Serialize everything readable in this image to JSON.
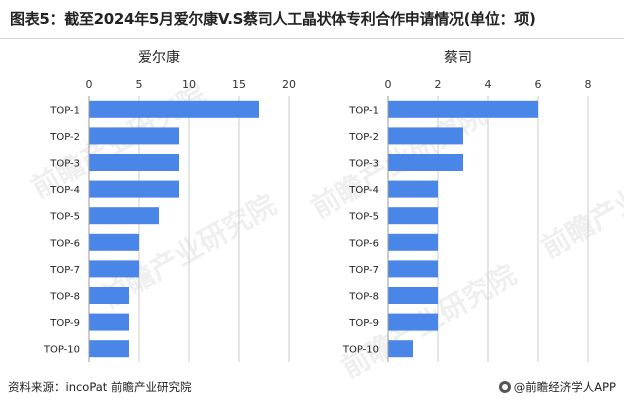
{
  "title": "图表5：截至2024年5月爱尔康V.S蔡司人工晶状体专利合作申请情况(单位：项)",
  "footer": {
    "source": "资料来源：incoPat 前瞻产业研究院",
    "brand": "@前瞻经济学人APP"
  },
  "watermark_text": "前瞻产业研究院",
  "colors": {
    "bar": "#4a86e8",
    "grid": "#cccccc"
  },
  "chart_data": [
    {
      "type": "bar",
      "orientation": "horizontal",
      "title": "爱尔康",
      "categories": [
        "TOP-1",
        "TOP-2",
        "TOP-3",
        "TOP-4",
        "TOP-5",
        "TOP-6",
        "TOP-7",
        "TOP-8",
        "TOP-9",
        "TOP-10"
      ],
      "values": [
        17,
        9,
        9,
        9,
        7,
        5,
        5,
        4,
        4,
        4
      ],
      "xlim": [
        0,
        20
      ],
      "ticks": [
        0,
        5,
        10,
        15,
        20
      ],
      "tick_labels": [
        "0",
        "5",
        "10",
        "15",
        "20"
      ],
      "axis_position": "top",
      "grid": true
    },
    {
      "type": "bar",
      "orientation": "horizontal",
      "title": "蔡司",
      "categories": [
        "TOP-1",
        "TOP-2",
        "TOP-3",
        "TOP-4",
        "TOP-5",
        "TOP-6",
        "TOP-7",
        "TOP-8",
        "TOP-9",
        "TOP-10"
      ],
      "values": [
        6,
        3,
        3,
        2,
        2,
        2,
        2,
        2,
        2,
        1
      ],
      "xlim": [
        0,
        8
      ],
      "ticks": [
        0,
        2,
        4,
        6,
        8
      ],
      "tick_labels": [
        "0",
        "2",
        "4",
        "6",
        "8"
      ],
      "axis_position": "top",
      "grid": true
    }
  ]
}
